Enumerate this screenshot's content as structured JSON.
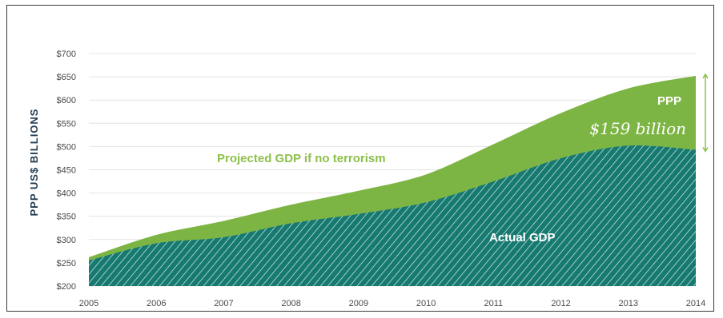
{
  "chart_data": {
    "type": "area",
    "title": "",
    "ylabel": "PPP US$ BILLIONS",
    "xlabel": "",
    "ylim": [
      200,
      700
    ],
    "y_ticks": [
      "$200",
      "$250",
      "$300",
      "$350",
      "$400",
      "$450",
      "$500",
      "$550",
      "$600",
      "$650",
      "$700"
    ],
    "x": [
      "2005",
      "2006",
      "2007",
      "2008",
      "2009",
      "2010",
      "2011",
      "2012",
      "2013",
      "2014"
    ],
    "series": [
      {
        "name": "Projected GDP if no terrorism",
        "color": "#7db544",
        "values": [
          262,
          310,
          340,
          375,
          405,
          440,
          505,
          572,
          625,
          652
        ]
      },
      {
        "name": "Actual GDP",
        "color": "#167a70",
        "hatched": true,
        "values": [
          255,
          292,
          305,
          335,
          355,
          380,
          425,
          475,
          502,
          493
        ]
      }
    ],
    "grid": "horizontal",
    "annotations": {
      "projected": "Projected GDP if no terrorism",
      "actual": "Actual GDP",
      "gap_label": "PPP",
      "gap_value": "$159 billion"
    },
    "gap_bracket_color": "#8dc04a"
  }
}
